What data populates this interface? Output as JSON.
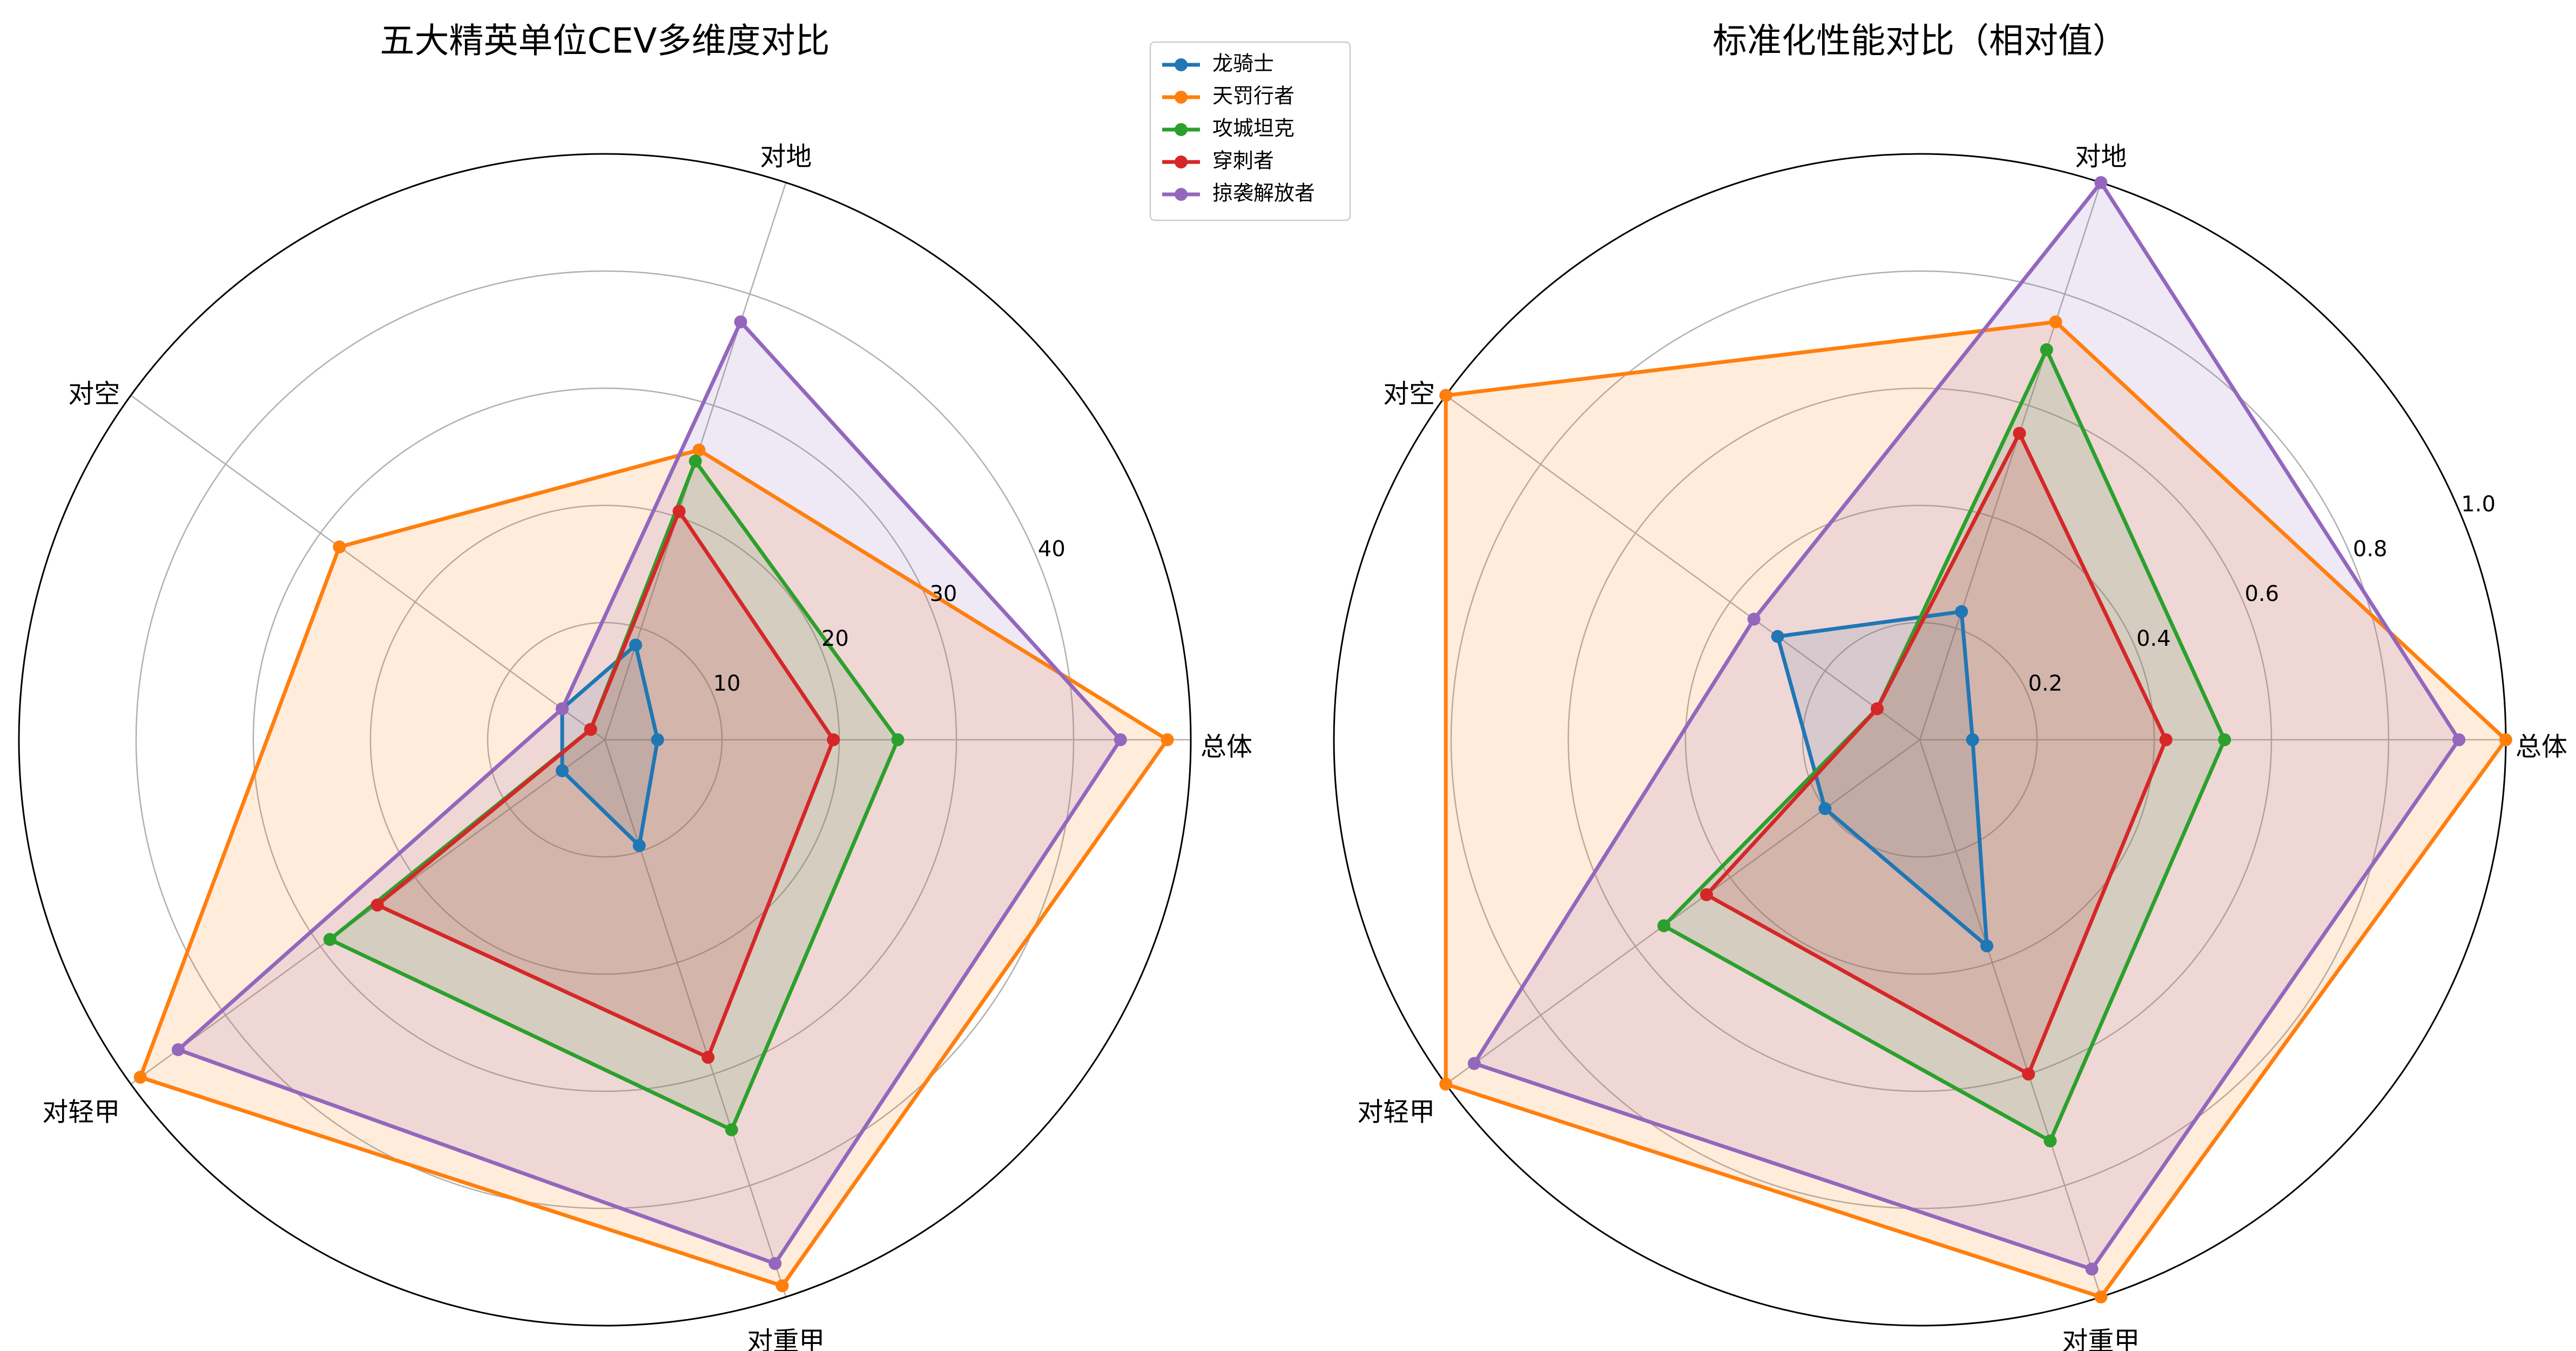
{
  "chart_data": [
    {
      "type": "radar",
      "title": "五大精英单位CEV多维度对比",
      "categories": [
        "总体",
        "对地",
        "对空",
        "对轻甲",
        "对重甲"
      ],
      "rlim": [
        0,
        50
      ],
      "rticks": [
        10,
        20,
        30,
        40
      ],
      "rtick_labels": [
        "10",
        "20",
        "30",
        "40"
      ],
      "grid": true,
      "series": [
        {
          "name": "龙骑士",
          "values": [
            4.5,
            8.5,
            4.5,
            4.5,
            9.5
          ]
        },
        {
          "name": "天罚行者",
          "values": [
            48,
            26,
            28,
            49,
            49
          ]
        },
        {
          "name": "攻城坦克",
          "values": [
            25,
            25,
            1.5,
            29,
            35
          ]
        },
        {
          "name": "穿刺者",
          "values": [
            19.5,
            20.5,
            1.5,
            24,
            28.5
          ]
        },
        {
          "name": "掠袭解放者",
          "values": [
            44,
            37.5,
            4.5,
            45,
            47
          ]
        }
      ]
    },
    {
      "type": "radar",
      "title": "标准化性能对比（相对值）",
      "categories": [
        "总体",
        "对地",
        "对空",
        "对轻甲",
        "对重甲"
      ],
      "rlim": [
        0,
        1.0
      ],
      "rticks": [
        0.2,
        0.4,
        0.6,
        0.8,
        1.0
      ],
      "rtick_labels": [
        "0.2",
        "0.4",
        "0.6",
        "0.8",
        "1.0"
      ],
      "grid": true,
      "series": [
        {
          "name": "龙骑士",
          "values": [
            0.09,
            0.23,
            0.3,
            0.2,
            0.37
          ]
        },
        {
          "name": "天罚行者",
          "values": [
            1.0,
            0.75,
            1.0,
            1.0,
            1.0
          ]
        },
        {
          "name": "攻城坦克",
          "values": [
            0.52,
            0.7,
            0.09,
            0.54,
            0.72
          ]
        },
        {
          "name": "穿刺者",
          "values": [
            0.42,
            0.55,
            0.09,
            0.45,
            0.6
          ]
        },
        {
          "name": "掠袭解放者",
          "values": [
            0.92,
            1.0,
            0.35,
            0.94,
            0.95
          ]
        }
      ]
    }
  ],
  "legend": {
    "placement": "upper-left of right panel",
    "entries": [
      "龙骑士",
      "天罚行者",
      "攻城坦克",
      "穿刺者",
      "掠袭解放者"
    ]
  },
  "colors": [
    "#1f77b4",
    "#ff7f0e",
    "#2ca02c",
    "#d62728",
    "#9467bd"
  ]
}
